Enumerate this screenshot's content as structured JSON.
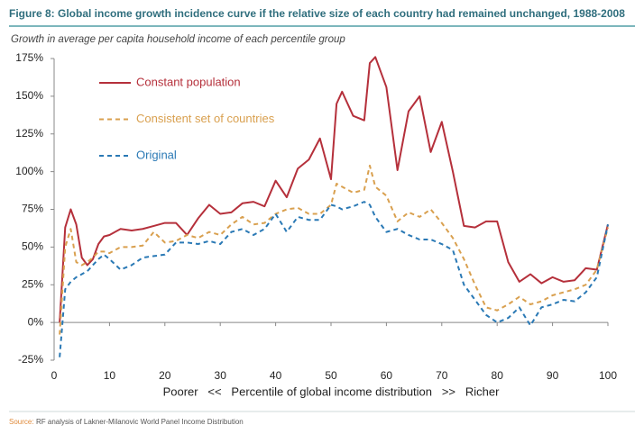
{
  "chart_data": {
    "type": "line",
    "title": "Figure 8: Global income growth incidence curve if the relative size of each country had remained unchanged, 1988-2008",
    "subtitle": "Growth in average per capita household income of each percentile group",
    "x_label": "Poorer   <<   Percentile of global income distribution   >>   Richer",
    "source_label": "Source:",
    "source": "RF analysis of Lakner-Milanovic World Panel Income Distribution",
    "x": [
      1,
      2,
      3,
      4,
      5,
      6,
      7,
      8,
      9,
      10,
      12,
      14,
      16,
      18,
      20,
      22,
      24,
      26,
      28,
      30,
      32,
      34,
      36,
      38,
      40,
      42,
      44,
      46,
      48,
      50,
      51,
      52,
      54,
      56,
      57,
      58,
      60,
      62,
      64,
      66,
      68,
      70,
      72,
      74,
      76,
      78,
      80,
      82,
      84,
      86,
      88,
      90,
      92,
      94,
      96,
      98,
      100
    ],
    "series": [
      {
        "name": "Constant population",
        "color": "#b5303b",
        "dash": false,
        "values": [
          0,
          63,
          75,
          65,
          43,
          38,
          42,
          52,
          57,
          58,
          62,
          61,
          62,
          64,
          66,
          66,
          58,
          69,
          78,
          72,
          73,
          79,
          80,
          77,
          94,
          83,
          102,
          108,
          122,
          95,
          145,
          153,
          137,
          134,
          172,
          176,
          156,
          101,
          140,
          150,
          113,
          133,
          100,
          64,
          63,
          67,
          67,
          40,
          27,
          32,
          26,
          30,
          27,
          28,
          36,
          35,
          65
        ]
      },
      {
        "name": "Consistent set of countries",
        "color": "#d9a04f",
        "dash": true,
        "values": [
          -8,
          50,
          62,
          40,
          38,
          40,
          43,
          47,
          47,
          46,
          50,
          50,
          51,
          60,
          53,
          54,
          58,
          56,
          60,
          58,
          65,
          70,
          65,
          66,
          72,
          75,
          76,
          72,
          72,
          78,
          92,
          90,
          86,
          88,
          104,
          90,
          84,
          67,
          73,
          70,
          75,
          66,
          56,
          42,
          25,
          10,
          8,
          12,
          17,
          12,
          14,
          18,
          20,
          22,
          25,
          35,
          63
        ]
      },
      {
        "name": "Original",
        "color": "#2a79b5",
        "dash": true,
        "values": [
          -23,
          22,
          27,
          30,
          32,
          34,
          38,
          42,
          45,
          42,
          35,
          38,
          43,
          44,
          45,
          53,
          53,
          52,
          54,
          52,
          60,
          62,
          58,
          62,
          72,
          60,
          70,
          68,
          68,
          78,
          77,
          75,
          77,
          80,
          78,
          70,
          60,
          62,
          58,
          55,
          55,
          52,
          48,
          25,
          15,
          5,
          0,
          3,
          10,
          -2,
          10,
          12,
          15,
          14,
          20,
          30,
          65
        ]
      }
    ],
    "xlim": [
      0,
      100
    ],
    "xticks": [
      0,
      10,
      20,
      30,
      40,
      50,
      60,
      70,
      80,
      90,
      100
    ],
    "ylim": [
      -25,
      175
    ],
    "yticks": [
      {
        "value": -25,
        "label": "-25%"
      },
      {
        "value": 0,
        "label": "0%"
      },
      {
        "value": 25,
        "label": "25%"
      },
      {
        "value": 50,
        "label": "50%"
      },
      {
        "value": 75,
        "label": "75%"
      },
      {
        "value": 100,
        "label": "100%"
      },
      {
        "value": 125,
        "label": "125%"
      },
      {
        "value": 150,
        "label": "150%"
      },
      {
        "value": 175,
        "label": "175%"
      }
    ],
    "grid": false,
    "legend": "top-left"
  }
}
